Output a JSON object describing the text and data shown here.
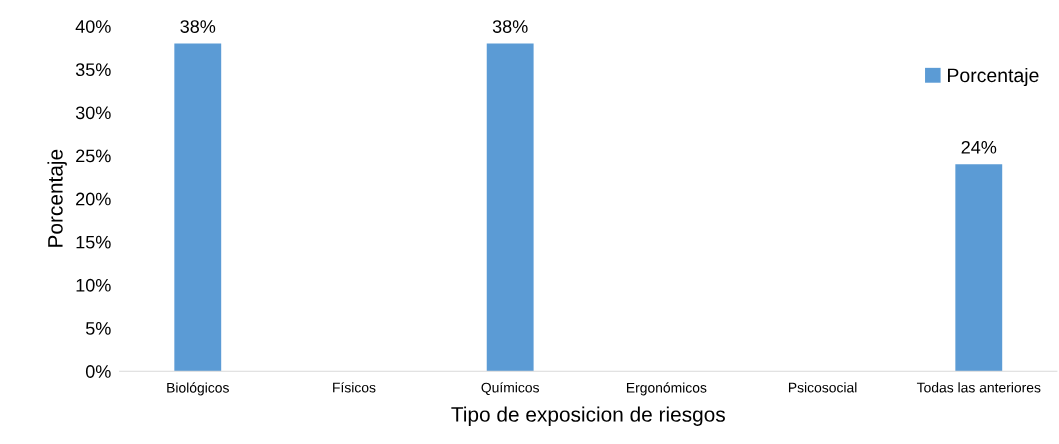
{
  "chart_data": {
    "type": "bar",
    "xlabel": "Tipo de exposicion de riesgos",
    "ylabel": "Porcentaje",
    "categories": [
      "Biológicos",
      "Físicos",
      "Químicos",
      "Ergonómicos",
      "Psicosocial",
      "Todas las anteriores"
    ],
    "series": [
      {
        "name": "Porcentaje",
        "color": "#5b9bd5",
        "values": [
          38,
          0,
          38,
          0,
          0,
          24
        ],
        "value_labels": [
          "38%",
          null,
          "38%",
          null,
          null,
          "24%"
        ]
      }
    ],
    "ylim": [
      0,
      40
    ],
    "yticks": [
      {
        "value": 0,
        "label": "0%"
      },
      {
        "value": 5,
        "label": "5%"
      },
      {
        "value": 10,
        "label": "10%"
      },
      {
        "value": 15,
        "label": "15%"
      },
      {
        "value": 20,
        "label": "20%"
      },
      {
        "value": 25,
        "label": "25%"
      },
      {
        "value": 30,
        "label": "30%"
      },
      {
        "value": 35,
        "label": "35%"
      },
      {
        "value": 40,
        "label": "40%"
      }
    ],
    "grid": false,
    "legend": "top right"
  }
}
